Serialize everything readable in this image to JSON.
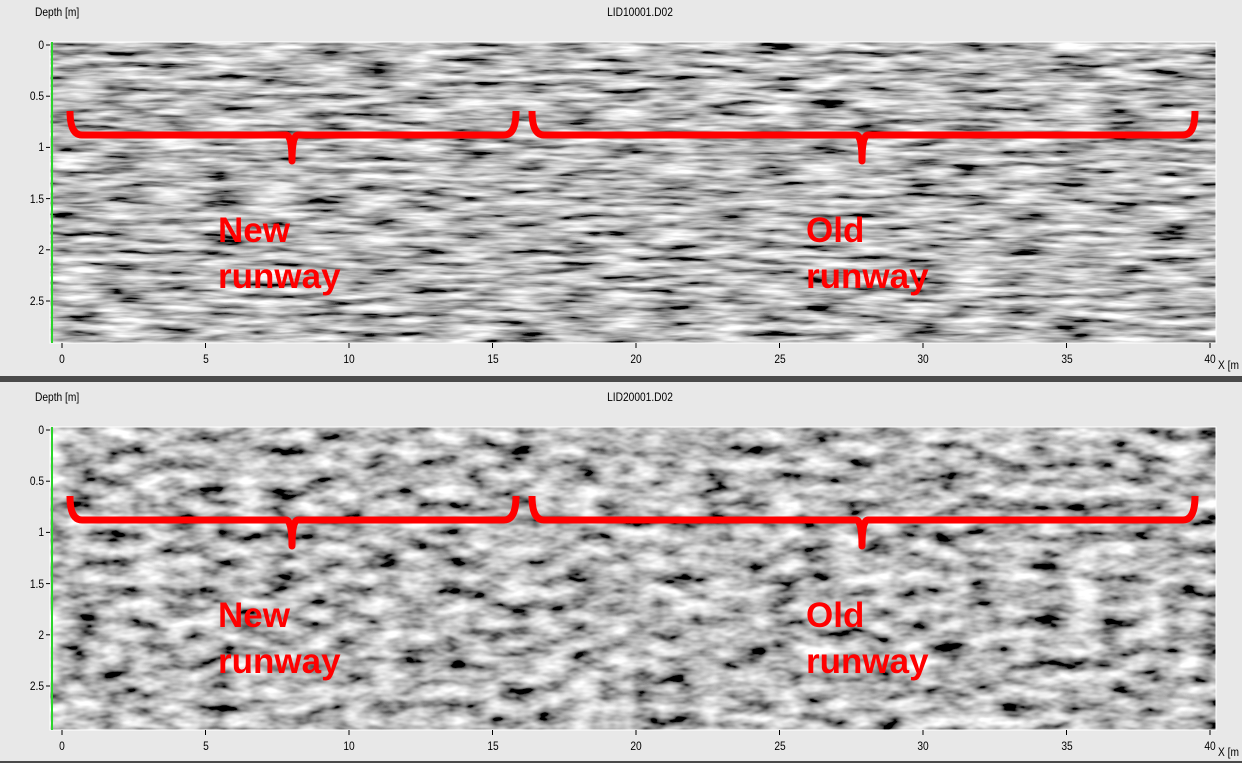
{
  "panels": [
    {
      "title": "LID10001.D02",
      "y_label": "Depth [m]",
      "y_ticks": [
        "0",
        "0.5",
        "1",
        "1.5",
        "2",
        "2.5"
      ],
      "x_ticks": [
        "0",
        "5",
        "10",
        "15",
        "20",
        "25",
        "30",
        "35",
        "40"
      ],
      "x_label": "X [m",
      "annotations": [
        {
          "lines": [
            "New",
            "runway"
          ]
        },
        {
          "lines": [
            "Old",
            "runway"
          ]
        }
      ]
    },
    {
      "title": "LID20001.D02",
      "y_label": "Depth [m]",
      "y_ticks": [
        "0",
        "0.5",
        "1",
        "1.5",
        "2",
        "2.5"
      ],
      "x_ticks": [
        "0",
        "5",
        "10",
        "15",
        "20",
        "25",
        "30",
        "35",
        "40"
      ],
      "x_label": "X [m",
      "annotations": [
        {
          "lines": [
            "New",
            "runway"
          ]
        },
        {
          "lines": [
            "Old",
            "runway"
          ]
        }
      ]
    }
  ]
}
